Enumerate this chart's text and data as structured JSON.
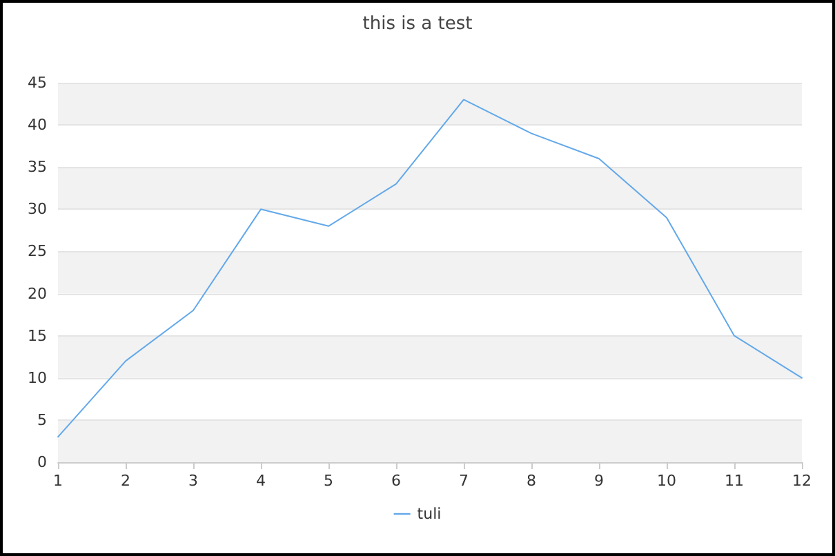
{
  "chart_data": {
    "type": "line",
    "title": "this is a test",
    "x": [
      1,
      2,
      3,
      4,
      5,
      6,
      7,
      8,
      9,
      10,
      11,
      12
    ],
    "series": [
      {
        "name": "tuli",
        "color": "#62a8ea",
        "values": [
          3,
          12,
          18,
          30,
          28,
          33,
          43,
          39,
          36,
          29,
          15,
          10
        ]
      }
    ],
    "xlim": [
      1,
      12
    ],
    "xticks": [
      1,
      2,
      3,
      4,
      5,
      6,
      7,
      8,
      9,
      10,
      11,
      12
    ],
    "ylim": [
      0,
      45
    ],
    "yticks": [
      0,
      5,
      10,
      15,
      20,
      25,
      30,
      35,
      40,
      45
    ],
    "grid": "y",
    "legend": "bottom",
    "marker": "none",
    "line_style": "solid"
  }
}
